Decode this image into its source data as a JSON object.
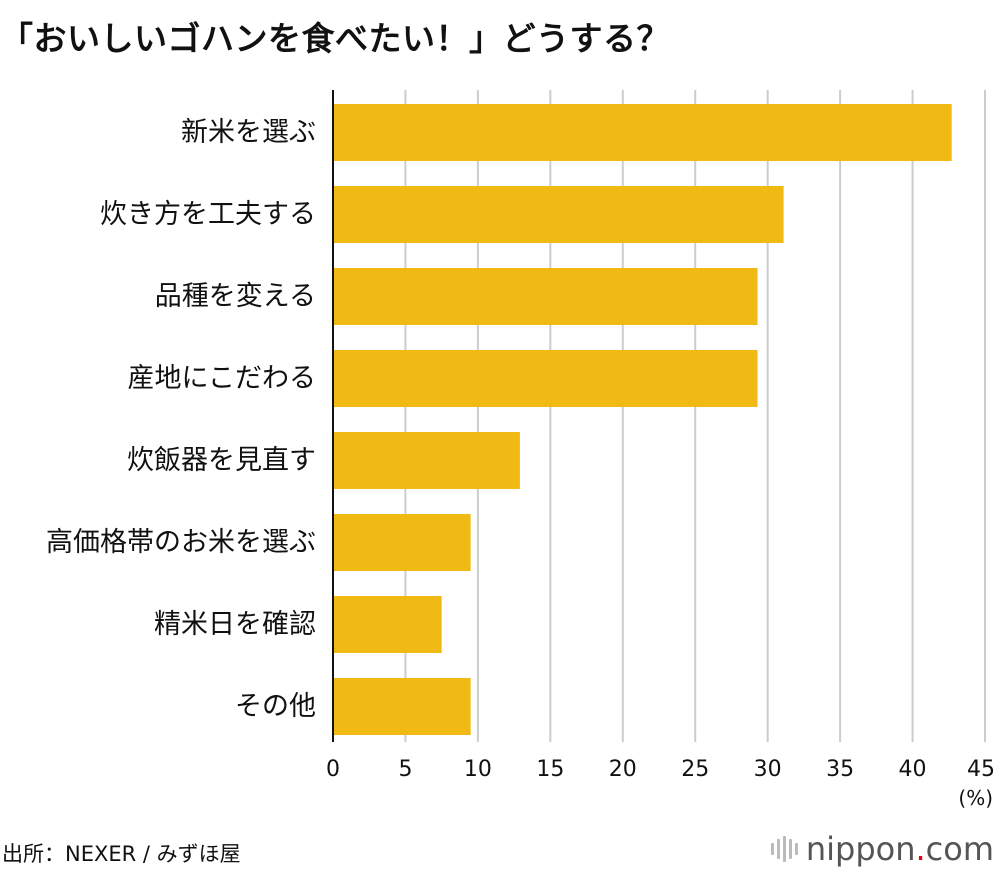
{
  "title": "「おいしいゴハンを食べたい！」どうする？",
  "source": "出所：NEXER / みずほ屋",
  "logo": {
    "name": "nippon",
    "dot": ".",
    "tld": "com"
  },
  "colors": {
    "bar": "#f0b914",
    "grid": "#cccccc",
    "axis": "#111111",
    "logo_dot": "#e60012"
  },
  "chart_data": {
    "type": "bar",
    "orientation": "horizontal",
    "categories": [
      "新米を選ぶ",
      "炊き方を工夫する",
      "品種を変える",
      "産地にこだわる",
      "炊飯器を見直す",
      "高価格帯のお米を選ぶ",
      "精米日を確認",
      "その他"
    ],
    "values": [
      42.7,
      31.1,
      29.3,
      29.3,
      12.9,
      9.5,
      7.5,
      9.5
    ],
    "xlim": [
      0,
      45
    ],
    "xticks": [
      0,
      5,
      10,
      15,
      20,
      25,
      30,
      35,
      40,
      45
    ],
    "unit": "(%)",
    "grid": true,
    "legend": "none"
  }
}
